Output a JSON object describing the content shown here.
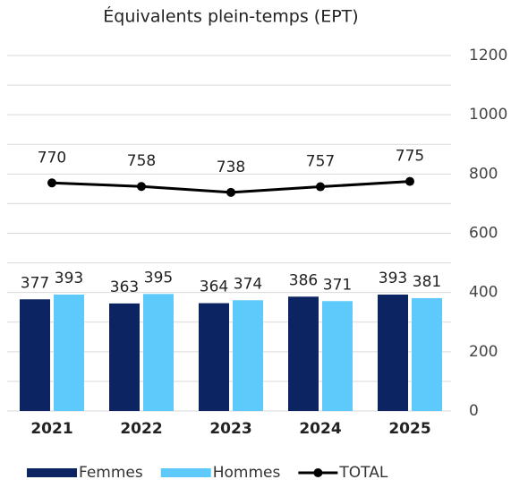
{
  "chart_data": {
    "type": "bar_line",
    "title": "Équivalents plein-temps (EPT)",
    "categories": [
      "2021",
      "2022",
      "2023",
      "2024",
      "2025"
    ],
    "series": [
      {
        "name": "Femmes",
        "color": "#0d2463",
        "kind": "bar",
        "values": [
          377,
          363,
          364,
          386,
          393
        ]
      },
      {
        "name": "Hommes",
        "color": "#5ec9fb",
        "kind": "bar",
        "values": [
          393,
          395,
          374,
          371,
          381
        ]
      },
      {
        "name": "TOTAL",
        "color": "#000000",
        "kind": "line",
        "values": [
          770,
          758,
          738,
          757,
          775
        ]
      }
    ],
    "ylim": [
      0,
      1200
    ],
    "yticks": [
      0,
      200,
      400,
      600,
      800,
      1000,
      1200
    ],
    "grid_yticks": [
      0,
      100,
      200,
      300,
      400,
      500,
      600,
      700,
      800,
      900,
      1000,
      1100,
      1200
    ],
    "grid": true,
    "axis_side": "right",
    "legend": "bottom"
  }
}
